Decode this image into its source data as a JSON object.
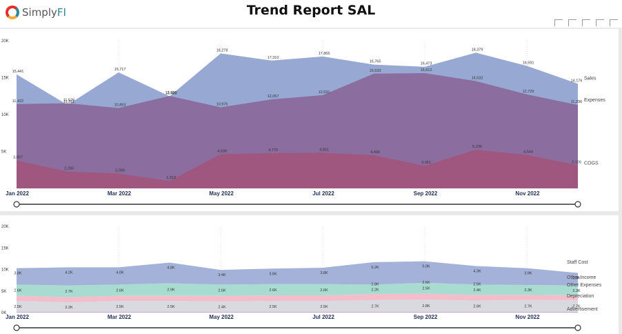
{
  "header": {
    "logo_text": "Simply",
    "logo_text_accent": "FI",
    "title": "Trend Report SAL"
  },
  "colors": {
    "sales": "#97a9d2",
    "expenses": "#8a6a9c",
    "cogs": "#b04565",
    "staff_cost": "#9aaad6",
    "other_income": "#a0d8cc",
    "other_expenses": "#f2b6c6",
    "depreciation": "#d5d5dd",
    "advertisement": "#c79dcc",
    "axis_label": "#1f2f5a"
  },
  "chart_data": [
    {
      "type": "area",
      "title": "",
      "x": [
        "Jan 2022",
        "Feb 2022",
        "Mar 2022",
        "Apr 2022",
        "May 2022",
        "Jun 2022",
        "Jul 2022",
        "Aug 2022",
        "Sep 2022",
        "Oct 2022",
        "Nov 2022",
        "Dec 2022"
      ],
      "x_tick_labels": [
        "Jan 2022",
        "Mar 2022",
        "May 2022",
        "Jul 2022",
        "Sep 2022",
        "Nov 2022"
      ],
      "y_tick_labels": [
        "20K",
        "15K",
        "10K",
        "5K"
      ],
      "ylim": [
        0,
        20000
      ],
      "series": [
        {
          "name": "Sales",
          "values": [
            15441,
            11311,
            15717,
            12481,
            18278,
            17310,
            17865,
            16765,
            16473,
            18379,
            16591,
            14176
          ],
          "labels": [
            "15,441",
            "11,311",
            "15,717",
            "12,481",
            "18,278",
            "17,310",
            "17,865",
            "16,765",
            "16,473",
            "18,379",
            "16,591",
            "14,176"
          ]
        },
        {
          "name": "Expenses",
          "values": [
            11422,
            11526,
            10893,
            12520,
            10976,
            12057,
            12631,
            15533,
            15612,
            14532,
            12729,
            11296
          ],
          "labels": [
            "11,422",
            "11,526",
            "10,893",
            "12,520",
            "10,976",
            "12,057",
            "12,631",
            "15,533",
            "15,612",
            "14,532",
            "12,729",
            "11,296"
          ]
        },
        {
          "name": "COGS",
          "values": [
            3807,
            2280,
            2000,
            1013,
            4638,
            4779,
            4831,
            4496,
            3061,
            5235,
            4544,
            3126
          ],
          "labels": [
            "3,807",
            "2,280",
            "2,000",
            "1,013",
            "4,638",
            "4,779",
            "4,831",
            "4,496",
            "3,061",
            "5,235",
            "4,544",
            "3,126"
          ]
        }
      ]
    },
    {
      "type": "area",
      "stacked": true,
      "title": "",
      "x": [
        "Jan 2022",
        "Feb 2022",
        "Mar 2022",
        "Apr 2022",
        "May 2022",
        "Jun 2022",
        "Jul 2022",
        "Aug 2022",
        "Sep 2022",
        "Oct 2022",
        "Nov 2022",
        "Dec 2022"
      ],
      "x_tick_labels": [
        "Jan 2022",
        "Mar 2022",
        "May 2022",
        "Jul 2022",
        "Sep 2022",
        "Nov 2022"
      ],
      "y_tick_labels": [
        "20K",
        "15K",
        "10K",
        "5K",
        "0K"
      ],
      "ylim": [
        0,
        20000
      ],
      "series": [
        {
          "name": "Advertisement",
          "values": [
            200,
            200,
            200,
            200,
            200,
            200,
            200,
            200,
            200,
            200,
            200,
            200
          ],
          "labels": []
        },
        {
          "name": "Depreciation",
          "values": [
            2500,
            2200,
            2500,
            2500,
            2400,
            2500,
            2500,
            2700,
            2800,
            2600,
            2700,
            2700
          ],
          "labels": [
            "2.5K",
            "2.2K",
            "2.5K",
            "2.5K",
            "2.4K",
            "2.5K",
            "2.5K",
            "2.7K",
            "2.8K",
            "2.6K",
            "2.7K",
            "2.7K"
          ]
        },
        {
          "name": "Other Expenses",
          "values": [
            1200,
            1200,
            1200,
            1200,
            1300,
            1300,
            1300,
            1400,
            1400,
            1300,
            1200,
            1100
          ],
          "labels": []
        },
        {
          "name": "Other Income",
          "values": [
            2600,
            2700,
            2600,
            2900,
            2600,
            2600,
            2600,
            2200,
            2500,
            2400,
            2300,
            2300
          ],
          "labels": [
            "2.6K",
            "2.7K",
            "2.6K",
            "2.9K",
            "2.6K",
            "2.6K",
            "2.6K",
            "2.2K",
            "2.5K",
            "2.4K",
            "2.3K",
            "2.3K"
          ]
        },
        {
          "name": "Staff Cost",
          "values": [
            3800,
            4200,
            4000,
            4800,
            3400,
            3600,
            3800,
            5200,
            5000,
            4300,
            3900,
            2900
          ],
          "labels": [
            "3.8K",
            "4.2K",
            "4.0K",
            "4.8K",
            "3.4K",
            "3.6K",
            "3.8K",
            "5.2K",
            "5.0K",
            "4.3K",
            "3.9K",
            "2.9K"
          ]
        }
      ],
      "extra_labels": [
        "2.8K",
        "2.6K",
        "2.5K"
      ]
    }
  ]
}
